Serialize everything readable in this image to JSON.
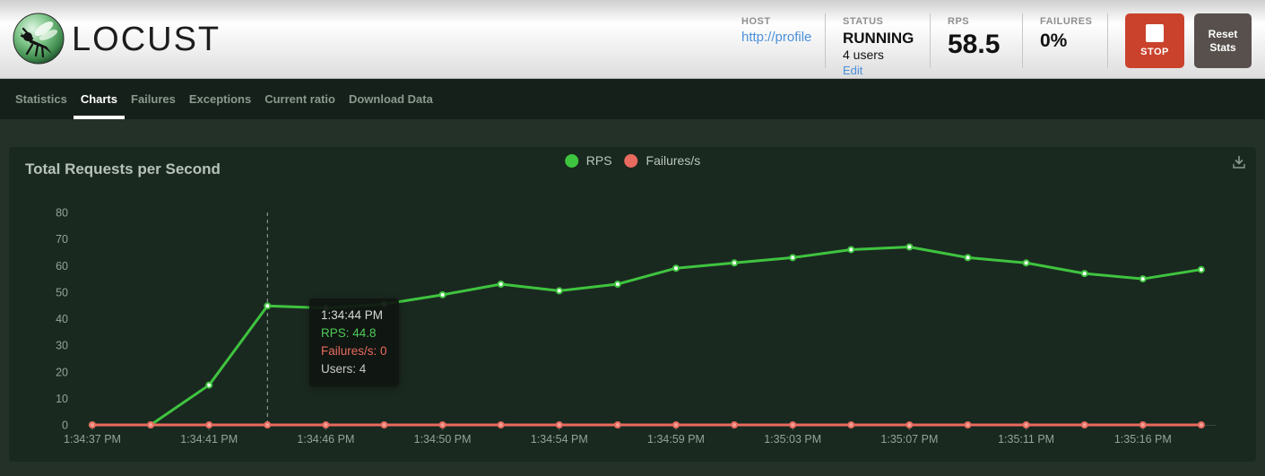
{
  "header": {
    "logo_text": "LOCUST",
    "host": {
      "label": "HOST",
      "value": "http://profile"
    },
    "status": {
      "label": "STATUS",
      "value": "RUNNING",
      "users": "4 users",
      "edit_link": "Edit"
    },
    "rps": {
      "label": "RPS",
      "value": "58.5"
    },
    "failures": {
      "label": "FAILURES",
      "value": "0%"
    },
    "stop_label": "STOP",
    "reset_label": "Reset Stats"
  },
  "nav": {
    "tabs": [
      {
        "label": "Statistics",
        "active": false
      },
      {
        "label": "Charts",
        "active": true
      },
      {
        "label": "Failures",
        "active": false
      },
      {
        "label": "Exceptions",
        "active": false
      },
      {
        "label": "Current ratio",
        "active": false
      },
      {
        "label": "Download Data",
        "active": false
      }
    ]
  },
  "chart": {
    "title": "Total Requests per Second",
    "tooltip": {
      "time": "1:34:44 PM",
      "rps": "RPS: 44.8",
      "failures": "Failures/s: 0",
      "users": "Users: 4"
    }
  },
  "chart_data": {
    "type": "line",
    "title": "Total Requests per Second",
    "x_tick_labels": [
      "1:34:37 PM",
      "1:34:41 PM",
      "1:34:46 PM",
      "1:34:50 PM",
      "1:34:54 PM",
      "1:34:59 PM",
      "1:35:03 PM",
      "1:35:07 PM",
      "1:35:11 PM",
      "1:35:16 PM"
    ],
    "y_ticks": [
      0,
      10,
      20,
      30,
      40,
      50,
      60,
      70,
      80
    ],
    "ylim": [
      0,
      80
    ],
    "grid": false,
    "legend_position": "top-center",
    "highlight_index": 3,
    "series": [
      {
        "name": "RPS",
        "color": "#3fc43f",
        "marker_fill": "#ffffff",
        "values": [
          0,
          0,
          15,
          44.8,
          44,
          45.5,
          49,
          53,
          50.5,
          53,
          59,
          61,
          63,
          66,
          67,
          63,
          61,
          57,
          55,
          58.5
        ]
      },
      {
        "name": "Failures/s",
        "color": "#e96a5f",
        "marker_fill": "#f2a096",
        "values": [
          0,
          0,
          0,
          0,
          0,
          0,
          0,
          0,
          0,
          0,
          0,
          0,
          0,
          0,
          0,
          0,
          0,
          0,
          0,
          0
        ]
      }
    ]
  },
  "icons": {
    "logo": "locust-logo",
    "stop": "stop-square-icon",
    "download": "download-icon"
  },
  "colors": {
    "accent_green": "#3fc43f",
    "accent_red": "#e96a5f",
    "link_blue": "#4a90d9",
    "stop_red": "#ca422c",
    "reset_gray": "#57504c",
    "nav_bg": "#16201a",
    "page_bg": "#233128",
    "panel_bg": "#1a2920"
  }
}
